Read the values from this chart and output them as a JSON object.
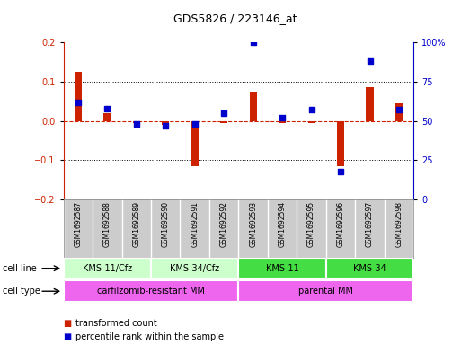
{
  "title": "GDS5826 / 223146_at",
  "samples": [
    "GSM1692587",
    "GSM1692588",
    "GSM1692589",
    "GSM1692590",
    "GSM1692591",
    "GSM1692592",
    "GSM1692593",
    "GSM1692594",
    "GSM1692595",
    "GSM1692596",
    "GSM1692597",
    "GSM1692598"
  ],
  "transformed_count": [
    0.125,
    0.02,
    -0.005,
    -0.01,
    -0.115,
    -0.005,
    0.075,
    -0.005,
    -0.005,
    -0.115,
    0.085,
    0.045
  ],
  "percentile_rank": [
    62,
    58,
    48,
    47,
    48,
    55,
    100,
    52,
    57,
    18,
    88,
    57
  ],
  "cell_line_groups": [
    {
      "label": "KMS-11/Cfz",
      "start": 0,
      "end": 2,
      "color": "#ccffcc"
    },
    {
      "label": "KMS-34/Cfz",
      "start": 3,
      "end": 5,
      "color": "#ccffcc"
    },
    {
      "label": "KMS-11",
      "start": 6,
      "end": 8,
      "color": "#44dd44"
    },
    {
      "label": "KMS-34",
      "start": 9,
      "end": 11,
      "color": "#44dd44"
    }
  ],
  "cell_type_groups": [
    {
      "label": "carfilzomib-resistant MM",
      "start": 0,
      "end": 5,
      "color": "#ee66ee"
    },
    {
      "label": "parental MM",
      "start": 6,
      "end": 11,
      "color": "#ee66ee"
    }
  ],
  "ylim_left": [
    -0.2,
    0.2
  ],
  "ylim_right": [
    0,
    100
  ],
  "yticks_left": [
    -0.2,
    -0.1,
    0.0,
    0.1,
    0.2
  ],
  "yticks_right": [
    0,
    25,
    50,
    75,
    100
  ],
  "bar_color": "#cc2200",
  "dot_color": "#0000cc",
  "background_color": "#ffffff",
  "plot_bg": "#ffffff",
  "label_bg": "#cccccc",
  "legend_items": [
    {
      "label": "transformed count",
      "color": "#cc2200"
    },
    {
      "label": "percentile rank within the sample",
      "color": "#0000cc"
    }
  ]
}
